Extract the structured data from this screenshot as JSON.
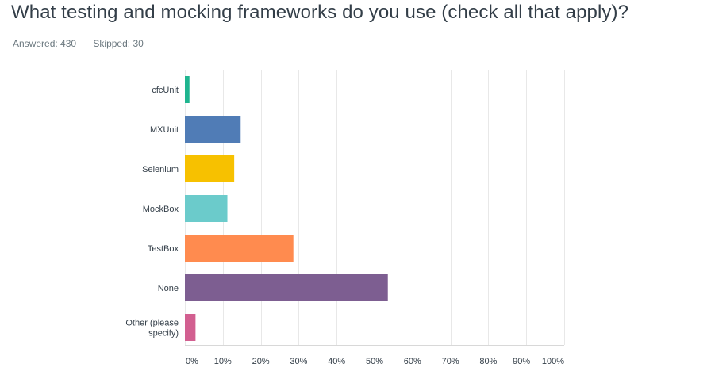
{
  "question": {
    "title": "What testing and mocking frameworks do you use (check all that apply)?",
    "answered_label": "Answered: 430",
    "skipped_label": "Skipped: 30"
  },
  "chart_data": {
    "type": "bar",
    "orientation": "horizontal",
    "categories": [
      "cfcUnit",
      "MXUnit",
      "Selenium",
      "MockBox",
      "TestBox",
      "None",
      "Other (please specify)"
    ],
    "category_lines": [
      [
        "cfcUnit"
      ],
      [
        "MXUnit"
      ],
      [
        "Selenium"
      ],
      [
        "MockBox"
      ],
      [
        "TestBox"
      ],
      [
        "None"
      ],
      [
        "Other (please",
        "specify)"
      ]
    ],
    "values": [
      1.2,
      14.7,
      13.0,
      11.2,
      28.6,
      53.5,
      2.8
    ],
    "colors": [
      "#1fb58f",
      "#507cb6",
      "#f7c100",
      "#6bcbcb",
      "#ff8b4f",
      "#7d5e91",
      "#d25f90"
    ],
    "xlim": [
      0,
      100
    ],
    "xticks": [
      "0%",
      "10%",
      "20%",
      "30%",
      "40%",
      "50%",
      "60%",
      "70%",
      "80%",
      "90%",
      "100%"
    ],
    "xtick_values": [
      0,
      10,
      20,
      30,
      40,
      50,
      60,
      70,
      80,
      90,
      100
    ],
    "grid": true,
    "grid_color": "#e8e8e8",
    "xlabel": "",
    "ylabel": "",
    "title": ""
  }
}
